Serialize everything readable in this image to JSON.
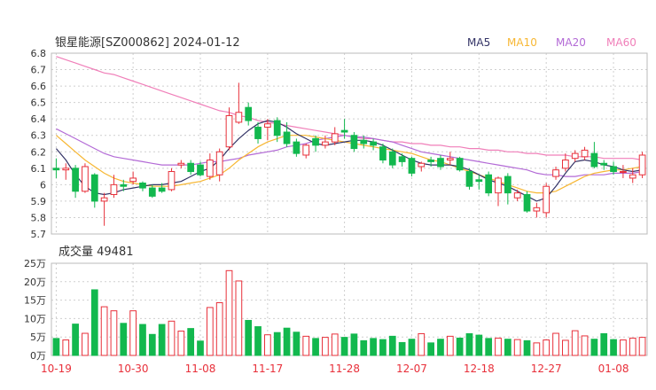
{
  "title": "银星能源[SZ000862] 2024-01-12",
  "volume_title": "成交量 49481",
  "legend": [
    {
      "label": "MA5",
      "color": "#333366"
    },
    {
      "label": "MA10",
      "color": "#f7b733"
    },
    {
      "label": "MA20",
      "color": "#b36ad6"
    },
    {
      "label": "MA60",
      "color": "#f07fb9"
    }
  ],
  "colors": {
    "up": "#e8303a",
    "down": "#12b84e",
    "grid": "#cfcfcf",
    "date": "#e8303a"
  },
  "chart_data": [
    {
      "type": "candlestick",
      "title": "银星能源[SZ000862] 2024-01-12",
      "ylim": [
        5.7,
        6.8
      ],
      "y_ticks": [
        "6.8",
        "6.7",
        "6.6",
        "6.5",
        "6.4",
        "6.3",
        "6.2",
        "6.1",
        "6",
        "5.9",
        "5.8",
        "5.7"
      ],
      "x_tick_labels": [
        "10-19",
        "10-30",
        "11-08",
        "11-17",
        "11-28",
        "12-07",
        "12-18",
        "12-27",
        "01-08"
      ],
      "candles": [
        [
          6.1,
          6.09,
          6.16,
          6.04
        ],
        [
          6.09,
          6.1,
          6.13,
          6.03
        ],
        [
          6.1,
          5.96,
          6.12,
          5.92
        ],
        [
          5.96,
          6.11,
          6.13,
          5.95
        ],
        [
          6.06,
          5.9,
          6.07,
          5.86
        ],
        [
          5.9,
          5.92,
          5.95,
          5.75
        ],
        [
          5.94,
          6.0,
          6.06,
          5.92
        ],
        [
          6.0,
          5.99,
          6.03,
          5.96
        ],
        [
          6.02,
          6.04,
          6.08,
          6.0
        ],
        [
          6.01,
          5.98,
          6.02,
          5.96
        ],
        [
          5.98,
          5.93,
          6.0,
          5.92
        ],
        [
          5.98,
          5.96,
          6.01,
          5.95
        ],
        [
          5.97,
          6.08,
          6.1,
          5.96
        ],
        [
          6.12,
          6.13,
          6.15,
          6.1
        ],
        [
          6.13,
          6.08,
          6.15,
          6.06
        ],
        [
          6.12,
          6.06,
          6.14,
          6.05
        ],
        [
          6.05,
          6.15,
          6.19,
          6.03
        ],
        [
          6.06,
          6.2,
          6.22,
          6.02
        ],
        [
          6.23,
          6.42,
          6.47,
          6.21
        ],
        [
          6.38,
          6.44,
          6.62,
          6.37
        ],
        [
          6.47,
          6.39,
          6.5,
          6.36
        ],
        [
          6.35,
          6.28,
          6.38,
          6.25
        ],
        [
          6.35,
          6.37,
          6.4,
          6.27
        ],
        [
          6.39,
          6.3,
          6.41,
          6.26
        ],
        [
          6.32,
          6.25,
          6.38,
          6.23
        ],
        [
          6.26,
          6.19,
          6.28,
          6.17
        ],
        [
          6.18,
          6.24,
          6.25,
          6.16
        ],
        [
          6.28,
          6.24,
          6.3,
          6.2
        ],
        [
          6.24,
          6.26,
          6.3,
          6.22
        ],
        [
          6.26,
          6.31,
          6.35,
          6.24
        ],
        [
          6.33,
          6.32,
          6.4,
          6.28
        ],
        [
          6.3,
          6.22,
          6.32,
          6.2
        ],
        [
          6.27,
          6.25,
          6.3,
          6.22
        ],
        [
          6.26,
          6.24,
          6.28,
          6.21
        ],
        [
          6.23,
          6.15,
          6.25,
          6.13
        ],
        [
          6.2,
          6.12,
          6.22,
          6.1
        ],
        [
          6.17,
          6.14,
          6.19,
          6.11
        ],
        [
          6.16,
          6.07,
          6.17,
          6.05
        ],
        [
          6.11,
          6.13,
          6.14,
          6.08
        ],
        [
          6.15,
          6.14,
          6.17,
          6.11
        ],
        [
          6.16,
          6.11,
          6.18,
          6.09
        ],
        [
          6.15,
          6.16,
          6.2,
          6.12
        ],
        [
          6.16,
          6.09,
          6.17,
          6.08
        ],
        [
          6.08,
          5.99,
          6.1,
          5.97
        ],
        [
          6.03,
          6.02,
          6.06,
          5.97
        ],
        [
          6.06,
          5.95,
          6.08,
          5.93
        ],
        [
          5.95,
          6.04,
          6.05,
          5.87
        ],
        [
          6.05,
          5.95,
          6.07,
          5.88
        ],
        [
          5.92,
          5.95,
          5.97,
          5.9
        ],
        [
          5.94,
          5.84,
          5.96,
          5.83
        ],
        [
          5.84,
          5.86,
          5.89,
          5.8
        ],
        [
          5.83,
          5.99,
          6.01,
          5.8
        ],
        [
          6.05,
          6.09,
          6.11,
          6.03
        ],
        [
          6.1,
          6.15,
          6.19,
          6.08
        ],
        [
          6.16,
          6.19,
          6.21,
          6.14
        ],
        [
          6.17,
          6.21,
          6.23,
          6.15
        ],
        [
          6.19,
          6.11,
          6.26,
          6.1
        ],
        [
          6.13,
          6.12,
          6.15,
          6.09
        ],
        [
          6.11,
          6.08,
          6.14,
          6.06
        ],
        [
          6.08,
          6.08,
          6.12,
          6.04
        ],
        [
          6.04,
          6.06,
          6.1,
          6.01
        ],
        [
          6.06,
          6.18,
          6.2,
          6.04
        ]
      ],
      "ma5": [
        6.22,
        6.15,
        6.06,
        5.99,
        5.95,
        5.94,
        5.95,
        5.97,
        5.98,
        5.99,
        6.0,
        6.0,
        6.01,
        6.02,
        6.05,
        6.08,
        6.1,
        6.15,
        6.22,
        6.28,
        6.33,
        6.37,
        6.39,
        6.38,
        6.35,
        6.31,
        6.28,
        6.25,
        6.24,
        6.25,
        6.26,
        6.27,
        6.27,
        6.26,
        6.24,
        6.21,
        6.18,
        6.15,
        6.13,
        6.12,
        6.12,
        6.12,
        6.11,
        6.09,
        6.06,
        6.03,
        6.01,
        5.99,
        5.96,
        5.93,
        5.9,
        5.92,
        5.99,
        6.07,
        6.14,
        6.15,
        6.14,
        6.12,
        6.11,
        6.09,
        6.08,
        6.09
      ],
      "ma10": [
        6.3,
        6.25,
        6.2,
        6.15,
        6.11,
        6.07,
        6.04,
        6.02,
        6.01,
        6.0,
        5.99,
        5.99,
        5.99,
        6.0,
        6.01,
        6.02,
        6.04,
        6.06,
        6.1,
        6.15,
        6.19,
        6.23,
        6.26,
        6.28,
        6.3,
        6.3,
        6.3,
        6.29,
        6.28,
        6.27,
        6.26,
        6.25,
        6.24,
        6.23,
        6.22,
        6.21,
        6.2,
        6.19,
        6.17,
        6.15,
        6.14,
        6.12,
        6.1,
        6.08,
        6.06,
        6.04,
        6.02,
        6.0,
        5.98,
        5.96,
        5.95,
        5.95,
        5.96,
        5.99,
        6.02,
        6.05,
        6.07,
        6.08,
        6.09,
        6.09,
        6.1,
        6.11
      ],
      "ma20": [
        6.34,
        6.31,
        6.28,
        6.25,
        6.22,
        6.19,
        6.17,
        6.16,
        6.15,
        6.14,
        6.13,
        6.12,
        6.12,
        6.12,
        6.12,
        6.13,
        6.14,
        6.14,
        6.15,
        6.16,
        6.18,
        6.19,
        6.2,
        6.21,
        6.23,
        6.24,
        6.25,
        6.27,
        6.28,
        6.29,
        6.3,
        6.29,
        6.29,
        6.28,
        6.27,
        6.26,
        6.24,
        6.22,
        6.2,
        6.19,
        6.18,
        6.17,
        6.16,
        6.15,
        6.14,
        6.13,
        6.12,
        6.11,
        6.1,
        6.09,
        6.07,
        6.06,
        6.06,
        6.05,
        6.05,
        6.06,
        6.06,
        6.06,
        6.07,
        6.07,
        6.07,
        6.08
      ],
      "ma60": [
        6.78,
        6.76,
        6.74,
        6.72,
        6.7,
        6.68,
        6.67,
        6.65,
        6.63,
        6.61,
        6.59,
        6.57,
        6.55,
        6.53,
        6.51,
        6.49,
        6.47,
        6.45,
        6.44,
        6.42,
        6.41,
        6.39,
        6.38,
        6.37,
        6.36,
        6.35,
        6.34,
        6.33,
        6.32,
        6.31,
        6.3,
        6.29,
        6.28,
        6.28,
        6.27,
        6.26,
        6.26,
        6.25,
        6.25,
        6.24,
        6.24,
        6.23,
        6.23,
        6.22,
        6.22,
        6.21,
        6.21,
        6.2,
        6.2,
        6.19,
        6.19,
        6.18,
        6.18,
        6.18,
        6.17,
        6.17,
        6.17,
        6.16,
        6.16,
        6.16,
        6.16,
        6.15
      ]
    },
    {
      "type": "bar",
      "title": "成交量 49481",
      "unit": "万",
      "ylim": [
        0,
        25
      ],
      "y_ticks": [
        "25万",
        "20万",
        "15万",
        "10万",
        "5万",
        "0万"
      ],
      "volume": [
        4.6,
        4.2,
        8.5,
        6.0,
        17.8,
        13.2,
        12.1,
        8.7,
        12.1,
        8.4,
        5.7,
        8.4,
        9.3,
        6.6,
        7.3,
        3.9,
        13.0,
        14.3,
        23.0,
        20.2,
        9.5,
        7.8,
        5.6,
        6.2,
        7.4,
        6.3,
        5.2,
        4.6,
        4.9,
        5.8,
        4.9,
        5.8,
        4.0,
        4.6,
        4.3,
        5.2,
        3.5,
        4.4,
        5.9,
        3.4,
        4.4,
        5.2,
        4.7,
        5.9,
        5.5,
        4.6,
        4.7,
        4.4,
        4.3,
        4.0,
        3.4,
        4.2,
        6.0,
        4.1,
        6.7,
        5.3,
        4.4,
        5.9,
        4.3,
        4.2,
        4.7,
        4.9
      ]
    }
  ]
}
